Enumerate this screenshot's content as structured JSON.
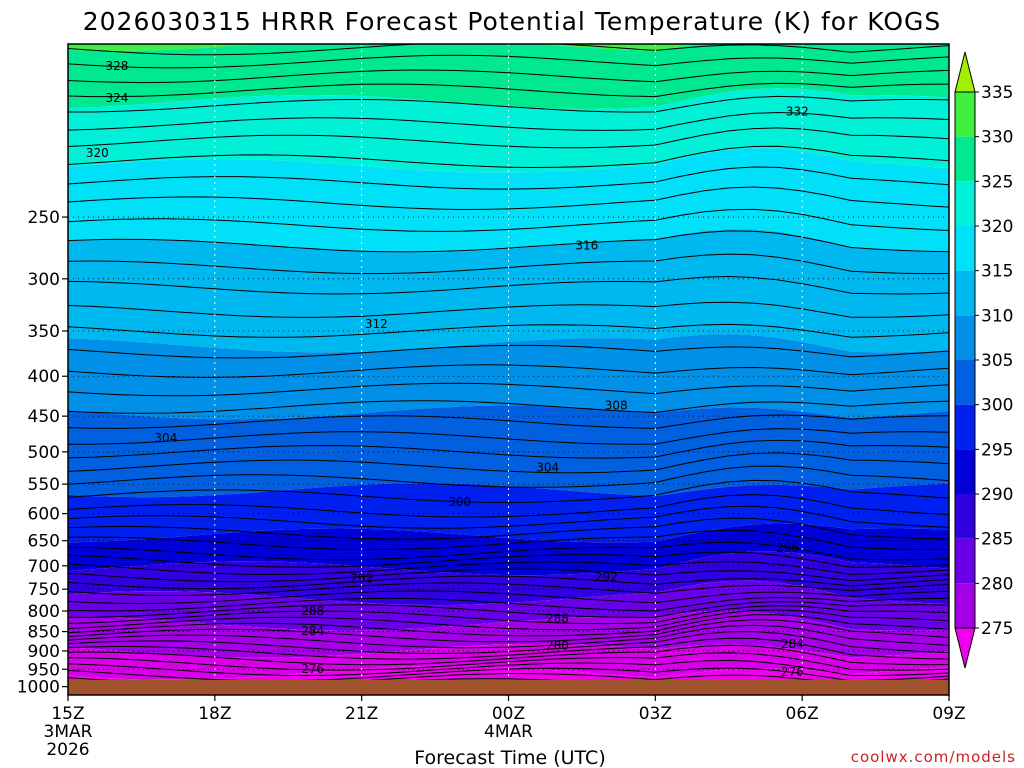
{
  "chart_data": {
    "type": "heatmap",
    "title": "2026030315 HRRR Forecast Potential Temperature (K) for KOGS",
    "xlabel": "Forecast Time (UTC)",
    "ylabel": "",
    "x_ticks": [
      {
        "label": "15Z",
        "sub1": "3MAR",
        "sub2": "2026",
        "hour": 0
      },
      {
        "label": "18Z",
        "sub1": "",
        "sub2": "",
        "hour": 3
      },
      {
        "label": "21Z",
        "sub1": "",
        "sub2": "",
        "hour": 6
      },
      {
        "label": "00Z",
        "sub1": "4MAR",
        "sub2": "",
        "hour": 9
      },
      {
        "label": "03Z",
        "sub1": "",
        "sub2": "",
        "hour": 12
      },
      {
        "label": "06Z",
        "sub1": "",
        "sub2": "",
        "hour": 15
      },
      {
        "label": "09Z",
        "sub1": "",
        "sub2": "",
        "hour": 18
      }
    ],
    "xlim": [
      0,
      18
    ],
    "y_ticks": [
      250,
      300,
      350,
      400,
      450,
      500,
      550,
      600,
      650,
      700,
      750,
      800,
      850,
      900,
      950,
      1000
    ],
    "ylim": [
      1025,
      150
    ],
    "y_scale": "log",
    "colorbar": {
      "ticks": [
        335,
        330,
        325,
        320,
        315,
        310,
        305,
        300,
        295,
        290,
        285,
        280,
        275
      ],
      "colors": [
        "#a0f000",
        "#40f040",
        "#00e890",
        "#00f0d8",
        "#00e0f8",
        "#00b8f0",
        "#0090e8",
        "#0060e0",
        "#0020f0",
        "#0000d8",
        "#3000e0",
        "#6a00e8",
        "#a400e8",
        "#d800e8",
        "#f000f0"
      ],
      "extend": "both"
    },
    "contour_labels": [
      {
        "text": "328",
        "hour": 1.0,
        "p": 160
      },
      {
        "text": "324",
        "hour": 1.0,
        "p": 176
      },
      {
        "text": "320",
        "hour": 0.6,
        "p": 207
      },
      {
        "text": "332",
        "hour": 14.9,
        "p": 183
      },
      {
        "text": "316",
        "hour": 10.6,
        "p": 272
      },
      {
        "text": "312",
        "hour": 6.3,
        "p": 343
      },
      {
        "text": "308",
        "hour": 11.2,
        "p": 436
      },
      {
        "text": "304",
        "hour": 2.0,
        "p": 480
      },
      {
        "text": "304",
        "hour": 9.8,
        "p": 524
      },
      {
        "text": "300",
        "hour": 8.0,
        "p": 580
      },
      {
        "text": "296",
        "hour": 14.7,
        "p": 664
      },
      {
        "text": "292",
        "hour": 6.0,
        "p": 727
      },
      {
        "text": "292",
        "hour": 11.0,
        "p": 723
      },
      {
        "text": "288",
        "hour": 5.0,
        "p": 800
      },
      {
        "text": "288",
        "hour": 10.0,
        "p": 818
      },
      {
        "text": "284",
        "hour": 5.0,
        "p": 849
      },
      {
        "text": "280",
        "hour": 10.0,
        "p": 885
      },
      {
        "text": "284",
        "hour": 14.8,
        "p": 882
      },
      {
        "text": "276",
        "hour": 5.0,
        "p": 949
      },
      {
        "text": "276",
        "hour": 14.8,
        "p": 958
      }
    ],
    "terrain_color": "#a0522d",
    "credit": "coolwx.com/models"
  }
}
